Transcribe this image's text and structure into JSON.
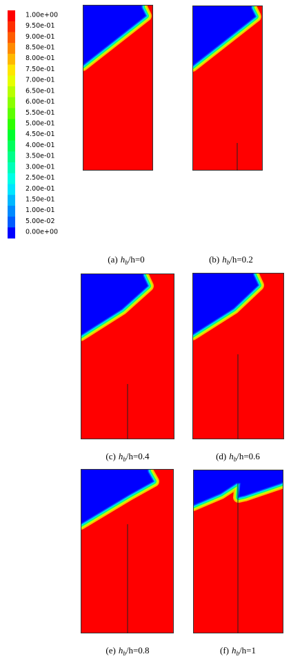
{
  "colorbar": {
    "levels": [
      {
        "label": "1.00e+00",
        "color": "#ff0000"
      },
      {
        "label": "9.50e-01",
        "color": "#ff2e00"
      },
      {
        "label": "9.00e-01",
        "color": "#ff5c00"
      },
      {
        "label": "8.50e-01",
        "color": "#ff8a00"
      },
      {
        "label": "8.00e-01",
        "color": "#ffb800"
      },
      {
        "label": "7.50e-01",
        "color": "#ffe600"
      },
      {
        "label": "7.00e-01",
        "color": "#e6ff00"
      },
      {
        "label": "6.50e-01",
        "color": "#b8ff00"
      },
      {
        "label": "6.00e-01",
        "color": "#8aff00"
      },
      {
        "label": "5.50e-01",
        "color": "#5cff00"
      },
      {
        "label": "5.00e-01",
        "color": "#2eff00"
      },
      {
        "label": "4.50e-01",
        "color": "#00ff2e"
      },
      {
        "label": "4.00e-01",
        "color": "#00ff5c"
      },
      {
        "label": "3.50e-01",
        "color": "#00ff8a"
      },
      {
        "label": "3.00e-01",
        "color": "#00ffb8"
      },
      {
        "label": "2.50e-01",
        "color": "#00ffe6"
      },
      {
        "label": "2.00e-01",
        "color": "#00e6ff"
      },
      {
        "label": "1.50e-01",
        "color": "#00b8ff"
      },
      {
        "label": "1.00e-01",
        "color": "#008aff"
      },
      {
        "label": "5.00e-02",
        "color": "#005cff"
      },
      {
        "label": "0.00e+00",
        "color": "#0000ff"
      }
    ]
  },
  "panels": [
    {
      "tag": "(a)",
      "var": "h",
      "sub": "b",
      "rest": "/h=0"
    },
    {
      "tag": "(b)",
      "var": "h",
      "sub": "b",
      "rest": "/h=0.2"
    },
    {
      "tag": "(c)",
      "var": "h",
      "sub": "b",
      "rest": "/h=0.4"
    },
    {
      "tag": "(d)",
      "var": "h",
      "sub": "b",
      "rest": "/h=0.6"
    },
    {
      "tag": "(e)",
      "var": "h",
      "sub": "b",
      "rest": "/h=0.8"
    },
    {
      "tag": "(f)",
      "var": "h",
      "sub": "b",
      "rest": "/h=1"
    }
  ]
}
